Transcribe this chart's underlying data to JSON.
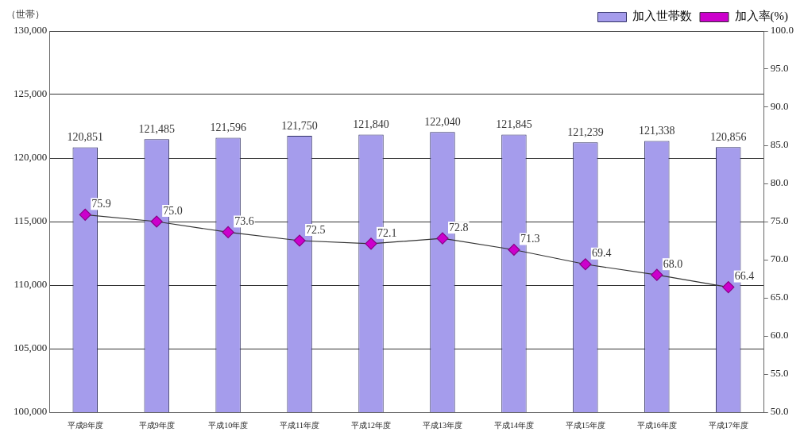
{
  "chart_data": {
    "type": "bar",
    "ylabel": "（世帯）",
    "categories": [
      "平成8年度",
      "平成9年度",
      "平成10年度",
      "平成11年度",
      "平成12年度",
      "平成13年度",
      "平成14年度",
      "平成15年度",
      "平成16年度",
      "平成17年度"
    ],
    "series": [
      {
        "name": "加入世帯数",
        "color": "#a59cec",
        "values": [
          120851,
          121485,
          121596,
          121750,
          121840,
          122040,
          121845,
          121239,
          121338,
          120856
        ],
        "value_labels": [
          "120,851",
          "121,485",
          "121,596",
          "121,750",
          "121,840",
          "122,040",
          "121,845",
          "121,239",
          "121,338",
          "120,856"
        ]
      },
      {
        "name": "加入率(%)",
        "type": "line",
        "axis": "y2",
        "color": "#cc00cc",
        "values": [
          75.9,
          75.0,
          73.6,
          72.5,
          72.1,
          72.8,
          71.3,
          69.4,
          68.0,
          66.4
        ],
        "value_labels": [
          "75.9",
          "75.0",
          "73.6",
          "72.5",
          "72.1",
          "72.8",
          "71.3",
          "69.4",
          "68.0",
          "66.4"
        ]
      }
    ],
    "ylim": [
      100000,
      130000
    ],
    "yticks": [
      {
        "value": 100000,
        "label": "100,000"
      },
      {
        "value": 105000,
        "label": "105,000"
      },
      {
        "value": 110000,
        "label": "110,000"
      },
      {
        "value": 115000,
        "label": "115,000"
      },
      {
        "value": 120000,
        "label": "120,000"
      },
      {
        "value": 125000,
        "label": "125,000"
      },
      {
        "value": 130000,
        "label": "130,000"
      }
    ],
    "y2lim": [
      50,
      100
    ],
    "y2ticks": [
      {
        "value": 50,
        "label": "50.0"
      },
      {
        "value": 55,
        "label": "55.0"
      },
      {
        "value": 60,
        "label": "60.0"
      },
      {
        "value": 65,
        "label": "65.0"
      },
      {
        "value": 70,
        "label": "70.0"
      },
      {
        "value": 75,
        "label": "75.0"
      },
      {
        "value": 80,
        "label": "80.0"
      },
      {
        "value": 85,
        "label": "85.0"
      },
      {
        "value": 90,
        "label": "90.0"
      },
      {
        "value": 95,
        "label": "95.0"
      },
      {
        "value": 100,
        "label": "100.0"
      }
    ],
    "grid": "y",
    "legend": "top right",
    "marker": "diamond",
    "line_style": "solid"
  }
}
